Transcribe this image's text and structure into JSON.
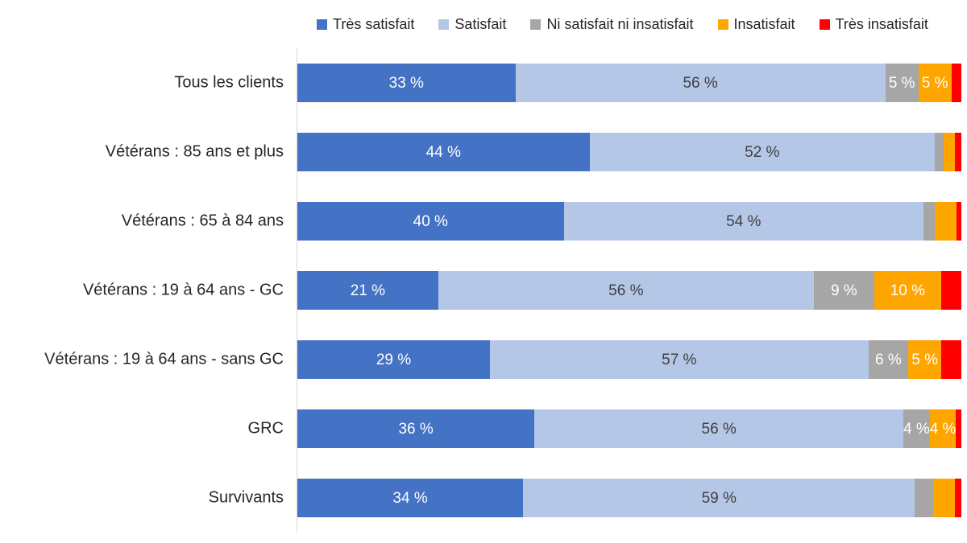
{
  "chart_data": {
    "type": "bar",
    "orientation": "horizontal",
    "stacked": true,
    "value_unit": "percent",
    "xlim": [
      0,
      100
    ],
    "grid": false,
    "legend_position": "top",
    "axis_line_color": "#d9d9d9",
    "categories": [
      "Tous les clients",
      "Vétérans : 85 ans et plus",
      "Vétérans : 65 à 84 ans",
      "Vétérans : 19 à 64 ans - GC",
      "Vétérans : 19 à 64 ans - sans GC",
      "GRC",
      "Survivants"
    ],
    "series": [
      {
        "name": "Très satisfait",
        "color": "#4472c4",
        "label_color": "#ffffff",
        "values": [
          33,
          44,
          40,
          21,
          29,
          36,
          34
        ],
        "labels": [
          "33 %",
          "44 %",
          "40 %",
          "21 %",
          "29 %",
          "36 %",
          "34 %"
        ]
      },
      {
        "name": "Satisfait",
        "color": "#b4c7e7",
        "label_color": "#404040",
        "values": [
          56,
          52,
          54,
          56,
          57,
          56,
          59
        ],
        "labels": [
          "56 %",
          "52 %",
          "54 %",
          "56 %",
          "57 %",
          "56 %",
          "59 %"
        ]
      },
      {
        "name": "Ni satisfait ni insatisfait",
        "color": "#a6a6a6",
        "label_color": "#ffffff",
        "values": [
          5,
          1.3,
          1.7,
          9,
          6,
          4,
          2.8
        ],
        "labels": [
          "5 %",
          "",
          "",
          "9 %",
          "6 %",
          "4 %",
          ""
        ]
      },
      {
        "name": "Insatisfait",
        "color": "#ffa500",
        "label_color": "#ffffff",
        "values": [
          5,
          1.7,
          3.3,
          10,
          5,
          4,
          3.2
        ],
        "labels": [
          "5 %",
          "",
          "",
          "10 %",
          "5 %",
          "4 %",
          ""
        ]
      },
      {
        "name": "Très insatisfait",
        "color": "#ff0000",
        "label_color": "#ffffff",
        "values": [
          1.5,
          1,
          0.7,
          3,
          3,
          0.8,
          1
        ],
        "labels": [
          "",
          "",
          "",
          "",
          "",
          "",
          ""
        ]
      }
    ]
  }
}
